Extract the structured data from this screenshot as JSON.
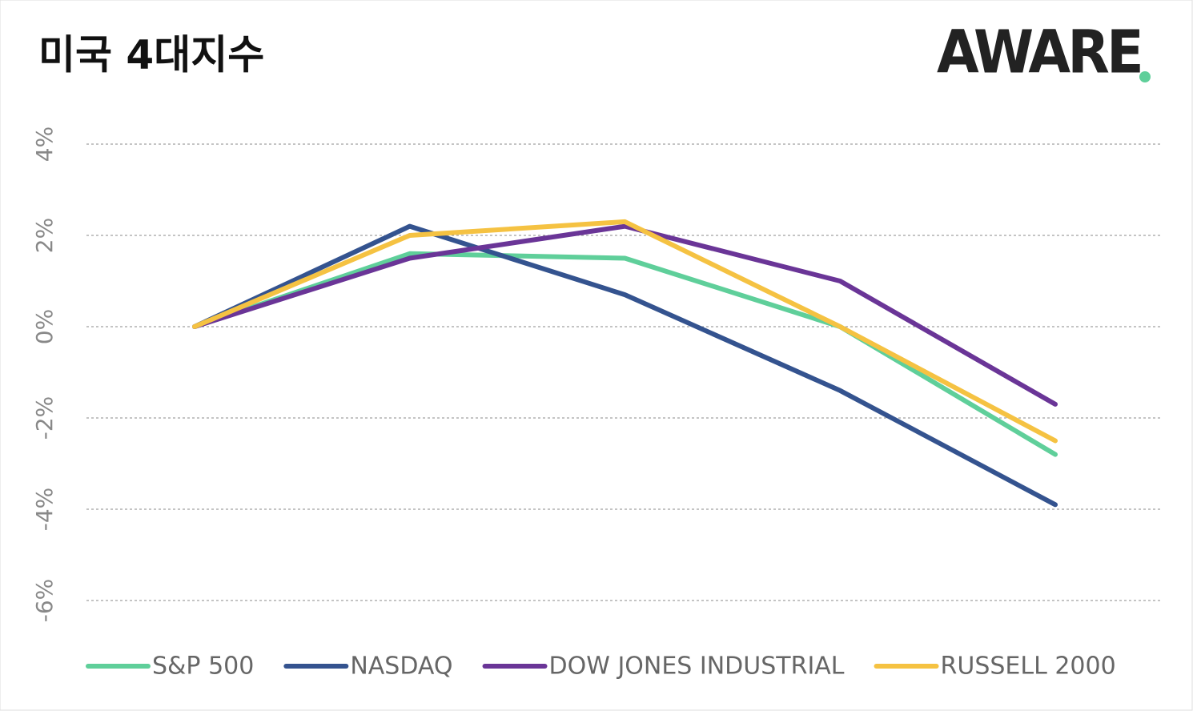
{
  "chart_data": {
    "type": "line",
    "title": "미국 4대지수",
    "logo": "AWARE",
    "categories": [
      null,
      null,
      null,
      null,
      null
    ],
    "series": [
      {
        "name": "S&P 500",
        "color": "#5fcf9a",
        "values": [
          0,
          1.6,
          1.5,
          0,
          -2.8
        ]
      },
      {
        "name": "NASDAQ",
        "color": "#34538f",
        "values": [
          0,
          2.2,
          0.7,
          -1.4,
          -3.9
        ]
      },
      {
        "name": "DOW JONES INDUSTRIAL",
        "color": "#6a3597",
        "values": [
          0,
          1.5,
          2.2,
          1.0,
          -1.7
        ]
      },
      {
        "name": "RUSSELL 2000",
        "color": "#f5c242",
        "values": [
          0,
          2.0,
          2.3,
          0,
          -2.5
        ]
      }
    ],
    "ylim": [
      -6,
      4
    ],
    "yticks": [
      {
        "value": -6,
        "label": "-6%"
      },
      {
        "value": -4,
        "label": "-4%"
      },
      {
        "value": -2,
        "label": "-2%"
      },
      {
        "value": 0,
        "label": "0%"
      },
      {
        "value": 2,
        "label": "2%"
      },
      {
        "value": 4,
        "label": "4%"
      }
    ],
    "grid": true,
    "legend": "bottom"
  }
}
